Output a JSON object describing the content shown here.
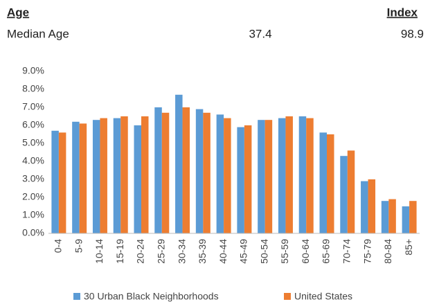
{
  "header": {
    "title": "Age",
    "index_label": "Index",
    "row_label": "Median Age",
    "row_value": "37.4",
    "row_index": "98.9"
  },
  "chart_data": {
    "type": "bar",
    "categories": [
      "0-4",
      "5-9",
      "10-14",
      "15-19",
      "20-24",
      "25-29",
      "30-34",
      "35-39",
      "40-44",
      "45-49",
      "50-54",
      "55-59",
      "60-64",
      "65-69",
      "70-74",
      "75-79",
      "80-84",
      "85+"
    ],
    "series": [
      {
        "name": "30 Urban Black Neighborhoods",
        "color": "#5b9bd5",
        "values": [
          5.7,
          6.2,
          6.3,
          6.4,
          6.0,
          7.0,
          7.7,
          6.9,
          6.6,
          5.9,
          6.3,
          6.4,
          6.5,
          5.6,
          4.3,
          2.9,
          1.8,
          1.5
        ]
      },
      {
        "name": "United States",
        "color": "#ed7d31",
        "values": [
          5.6,
          6.1,
          6.4,
          6.5,
          6.5,
          6.7,
          7.0,
          6.7,
          6.4,
          6.0,
          6.3,
          6.5,
          6.4,
          5.5,
          4.6,
          3.0,
          1.9,
          1.8
        ]
      }
    ],
    "ylim": [
      0,
      9
    ],
    "yticks": [
      {
        "value": 0,
        "label": "0.0%"
      },
      {
        "value": 1,
        "label": "1.0%"
      },
      {
        "value": 2,
        "label": "2.0%"
      },
      {
        "value": 3,
        "label": "3.0%"
      },
      {
        "value": 4,
        "label": "4.0%"
      },
      {
        "value": 5,
        "label": "5.0%"
      },
      {
        "value": 6,
        "label": "6.0%"
      },
      {
        "value": 7,
        "label": "7.0%"
      },
      {
        "value": 8,
        "label": "8.0%"
      },
      {
        "value": 9,
        "label": "9.0%"
      }
    ],
    "grid": false,
    "legend": "bottom"
  }
}
